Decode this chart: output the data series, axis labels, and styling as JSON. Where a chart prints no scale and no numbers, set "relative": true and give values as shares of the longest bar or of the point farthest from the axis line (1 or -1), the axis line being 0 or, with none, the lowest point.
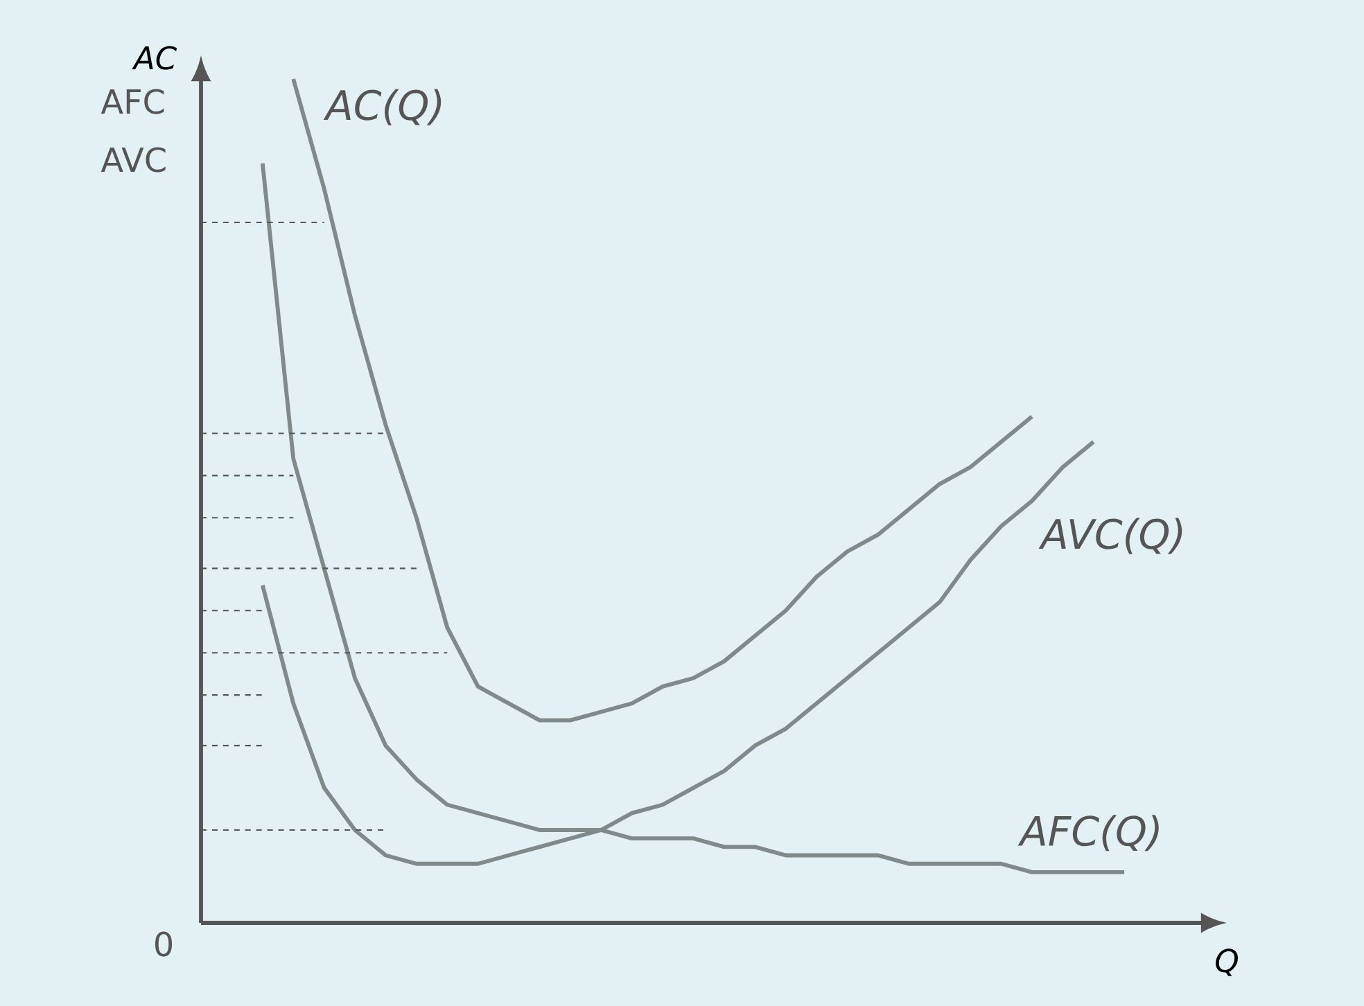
{
  "chart_data": {
    "type": "line",
    "relative": true,
    "tick_labels": false,
    "xlabel": "Q",
    "ylabel": "AC",
    "annotations": [
      "AFC",
      "AVC",
      "0"
    ],
    "categories": [
      null,
      null,
      null,
      null,
      null,
      null,
      null,
      null,
      null,
      null,
      null,
      null,
      null,
      null,
      null,
      null,
      null,
      null,
      null,
      null,
      null,
      null,
      null,
      null,
      null,
      null,
      null,
      null,
      null,
      null,
      null,
      null,
      null,
      null
    ],
    "series": [
      {
        "name": "AC(Q)",
        "color": "#808a8a",
        "line_style": "solid",
        "values": [
          null,
          null,
          null,
          1.0,
          0.87,
          0.72,
          0.59,
          0.48,
          0.35,
          0.28,
          0.26,
          0.24,
          0.24,
          0.25,
          0.26,
          0.28,
          0.29,
          0.31,
          0.34,
          0.37,
          0.41,
          0.44,
          0.46,
          0.49,
          0.52,
          0.54,
          0.57,
          0.6,
          null,
          null,
          null,
          null,
          null,
          null
        ]
      },
      {
        "name": "AVC(Q)",
        "color": "#808a8a",
        "line_style": "solid",
        "values": [
          null,
          null,
          0.4,
          0.26,
          0.16,
          0.11,
          0.08,
          0.07,
          0.07,
          0.07,
          0.08,
          0.09,
          0.1,
          0.11,
          0.13,
          0.14,
          0.16,
          0.18,
          0.21,
          0.23,
          0.26,
          0.29,
          0.32,
          0.35,
          0.38,
          0.43,
          0.47,
          0.5,
          0.54,
          0.57,
          null,
          null,
          null,
          null
        ]
      },
      {
        "name": "AFC(Q)",
        "color": "#808a8a",
        "line_style": "solid",
        "values": [
          null,
          null,
          0.9,
          0.55,
          0.42,
          0.29,
          0.21,
          0.17,
          0.14,
          0.13,
          0.12,
          0.11,
          0.11,
          0.11,
          0.1,
          0.1,
          0.1,
          0.09,
          0.09,
          0.08,
          0.08,
          0.08,
          0.08,
          0.07,
          0.07,
          0.07,
          0.07,
          0.06,
          0.06,
          0.06,
          0.06,
          null,
          null,
          null
        ]
      },
      {
        "color": "#555555",
        "line_style": "dashed",
        "values": [
          0.83,
          0.83,
          0.83,
          0.83,
          0.83,
          null,
          null,
          null,
          null,
          null,
          null,
          null,
          null,
          null,
          null,
          null,
          null,
          null,
          null,
          null,
          null,
          null,
          null,
          null,
          null,
          null,
          null,
          null,
          null,
          null,
          null,
          null,
          null,
          null
        ]
      },
      {
        "color": "#555555",
        "line_style": "dashed",
        "values": [
          0.58,
          0.58,
          0.58,
          0.58,
          0.58,
          0.58,
          0.58,
          null,
          null,
          null,
          null,
          null,
          null,
          null,
          null,
          null,
          null,
          null,
          null,
          null,
          null,
          null,
          null,
          null,
          null,
          null,
          null,
          null,
          null,
          null,
          null,
          null,
          null,
          null
        ]
      },
      {
        "color": "#555555",
        "line_style": "dashed",
        "values": [
          0.53,
          0.53,
          0.53,
          0.53,
          null,
          null,
          null,
          null,
          null,
          null,
          null,
          null,
          null,
          null,
          null,
          null,
          null,
          null,
          null,
          null,
          null,
          null,
          null,
          null,
          null,
          null,
          null,
          null,
          null,
          null,
          null,
          null,
          null,
          null
        ]
      },
      {
        "color": "#555555",
        "line_style": "dashed",
        "values": [
          0.48,
          0.48,
          0.48,
          0.48,
          null,
          null,
          null,
          null,
          null,
          null,
          null,
          null,
          null,
          null,
          null,
          null,
          null,
          null,
          null,
          null,
          null,
          null,
          null,
          null,
          null,
          null,
          null,
          null,
          null,
          null,
          null,
          null,
          null,
          null
        ]
      },
      {
        "color": "#555555",
        "line_style": "dashed",
        "values": [
          0.42,
          0.42,
          0.42,
          0.42,
          0.42,
          0.42,
          0.42,
          0.42,
          null,
          null,
          null,
          null,
          null,
          null,
          null,
          null,
          null,
          null,
          null,
          null,
          null,
          null,
          null,
          null,
          null,
          null,
          null,
          null,
          null,
          null,
          null,
          null,
          null,
          null
        ]
      },
      {
        "color": "#555555",
        "line_style": "dashed",
        "values": [
          0.37,
          0.37,
          0.37,
          null,
          null,
          null,
          null,
          null,
          null,
          null,
          null,
          null,
          null,
          null,
          null,
          null,
          null,
          null,
          null,
          null,
          null,
          null,
          null,
          null,
          null,
          null,
          null,
          null,
          null,
          null,
          null,
          null,
          null,
          null
        ]
      },
      {
        "color": "#555555",
        "line_style": "dashed",
        "values": [
          0.32,
          0.32,
          0.32,
          0.32,
          0.32,
          0.32,
          0.32,
          0.32,
          0.32,
          null,
          null,
          null,
          null,
          null,
          null,
          null,
          null,
          null,
          null,
          null,
          null,
          null,
          null,
          null,
          null,
          null,
          null,
          null,
          null,
          null,
          null,
          null,
          null,
          null
        ]
      },
      {
        "color": "#555555",
        "line_style": "dashed",
        "values": [
          0.27,
          0.27,
          0.27,
          null,
          null,
          null,
          null,
          null,
          null,
          null,
          null,
          null,
          null,
          null,
          null,
          null,
          null,
          null,
          null,
          null,
          null,
          null,
          null,
          null,
          null,
          null,
          null,
          null,
          null,
          null,
          null,
          null,
          null,
          null
        ]
      },
      {
        "color": "#555555",
        "line_style": "dashed",
        "values": [
          0.21,
          0.21,
          0.21,
          null,
          null,
          null,
          null,
          null,
          null,
          null,
          null,
          null,
          null,
          null,
          null,
          null,
          null,
          null,
          null,
          null,
          null,
          null,
          null,
          null,
          null,
          null,
          null,
          null,
          null,
          null,
          null,
          null,
          null,
          null
        ]
      },
      {
        "color": "#555555",
        "line_style": "dashed",
        "values": [
          0.11,
          0.11,
          0.11,
          0.11,
          0.11,
          0.11,
          0.11,
          null,
          null,
          null,
          null,
          null,
          null,
          null,
          null,
          null,
          null,
          null,
          null,
          null,
          null,
          null,
          null,
          null,
          null,
          null,
          null,
          null,
          null,
          null,
          null,
          null,
          null,
          null
        ]
      }
    ]
  }
}
